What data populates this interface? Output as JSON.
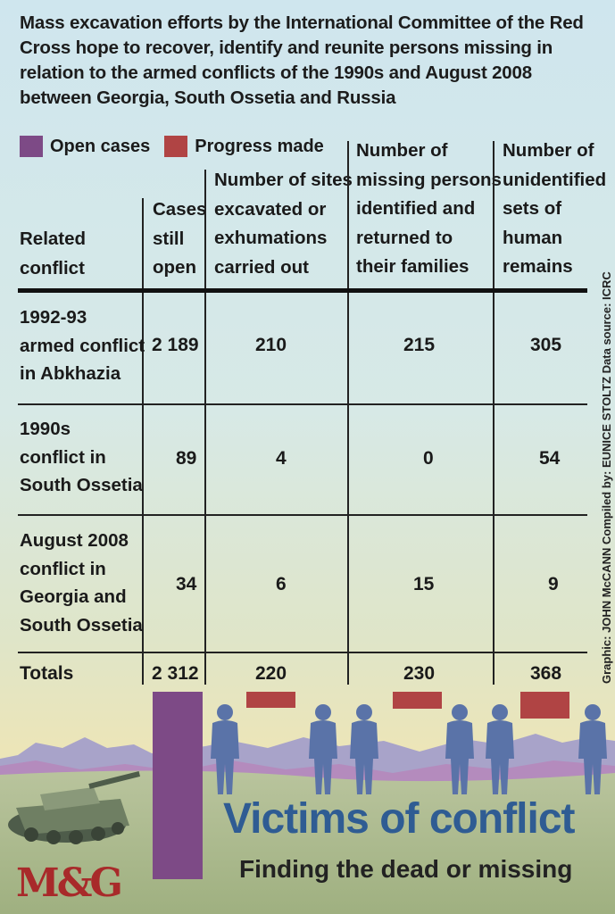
{
  "intro_text": "Mass excavation efforts by the International Committee of the Red Cross hope to recover, identify and reunite persons missing in relation to the armed conflicts of the 1990s and August 2008 between Georgia, South Ossetia and Russia",
  "legend": [
    {
      "label": "Open cases",
      "color": "#7d4a86"
    },
    {
      "label": "Progress made",
      "color": "#b04444"
    }
  ],
  "headers": {
    "conflict": [
      "Related",
      "conflict"
    ],
    "cases": [
      "Cases",
      "still",
      "open"
    ],
    "sites": [
      "Number of sites",
      "excavated or",
      "exhumations",
      "carried out"
    ],
    "identified": [
      "Number of",
      "missing persons",
      "identified and",
      "returned to",
      "their families"
    ],
    "unidentified": [
      "Number of",
      "unidentified",
      "sets of",
      "human",
      "remains"
    ]
  },
  "rows": [
    {
      "conflict": [
        "1992-93",
        "armed conflict",
        "in Abkhazia"
      ],
      "cases": "2 189",
      "sites": "210",
      "identified": "215",
      "unidentified": "305"
    },
    {
      "conflict": [
        "1990s",
        "conflict in",
        "South Ossetia"
      ],
      "cases": "89",
      "sites": "4",
      "identified": "0",
      "unidentified": "54"
    },
    {
      "conflict": [
        "August 2008",
        "conflict in",
        "Georgia and",
        "South Ossetia"
      ],
      "cases": "34",
      "sites": "6",
      "identified": "15",
      "unidentified": "9"
    }
  ],
  "totals": {
    "label": "Totals",
    "cases": "2 312",
    "sites": "220",
    "identified": "230",
    "unidentified": "368"
  },
  "credit": "Graphic: JOHN McCANN  Compiled by: EUNICE STOLTZ  Data source: ICRC",
  "title": "Victims of conflict",
  "subtitle": "Finding the dead or missing",
  "logo": "M&G",
  "chart_data": {
    "type": "table",
    "columns": [
      "Related conflict",
      "Cases still open",
      "Number of sites excavated or exhumations carried out",
      "Number of missing persons identified and returned to their families",
      "Number of unidentified sets of human remains"
    ],
    "rows": [
      [
        "1992-93 armed conflict in Abkhazia",
        2189,
        210,
        215,
        305
      ],
      [
        "1990s conflict in South Ossetia",
        89,
        4,
        0,
        54
      ],
      [
        "August 2008 conflict in Georgia and South Ossetia",
        34,
        6,
        15,
        9
      ],
      [
        "Totals",
        2312,
        220,
        230,
        368
      ]
    ],
    "bars": [
      {
        "category": "Cases still open",
        "value": 2312,
        "series": "Open cases"
      },
      {
        "category": "Number of sites excavated or exhumations carried out",
        "value": 220,
        "series": "Progress made"
      },
      {
        "category": "Number of missing persons identified and returned to their families",
        "value": 230,
        "series": "Progress made"
      },
      {
        "category": "Number of unidentified sets of human remains",
        "value": 368,
        "series": "Progress made"
      }
    ]
  }
}
